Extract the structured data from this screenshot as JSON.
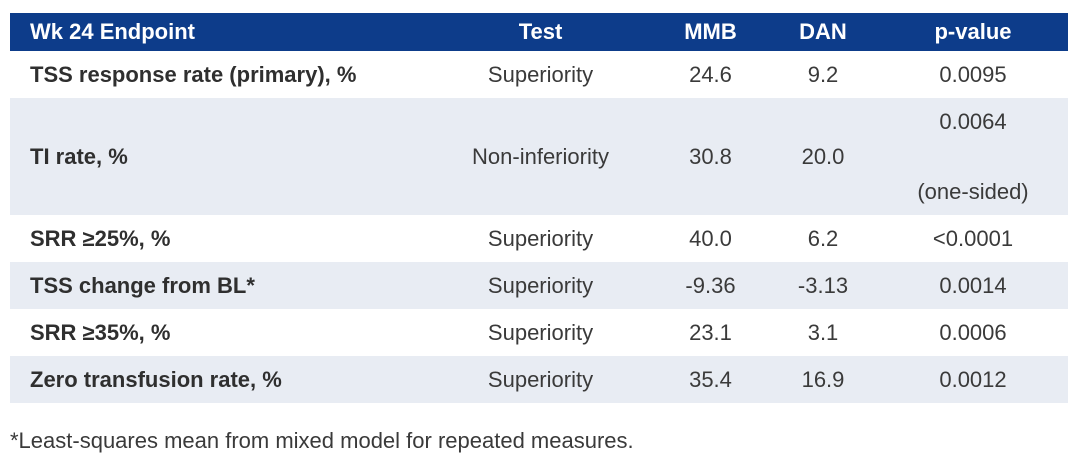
{
  "table": {
    "headers": {
      "endpoint": "Wk 24 Endpoint",
      "test": "Test",
      "mmb": "MMB",
      "dan": "DAN",
      "pvalue": "p-value"
    },
    "rows": [
      {
        "endpoint": "TSS response rate (primary), %",
        "test": "Superiority",
        "mmb": "24.6",
        "dan": "9.2",
        "pvalue": "0.0095"
      },
      {
        "endpoint": "TI rate, %",
        "test": "Non-inferiority",
        "mmb": "30.8",
        "dan": "20.0",
        "pvalue": "0.0064",
        "pvalue_note": "(one-sided)"
      },
      {
        "endpoint": "SRR ≥25%, %",
        "test": "Superiority",
        "mmb": "40.0",
        "dan": "6.2",
        "pvalue": "<0.0001"
      },
      {
        "endpoint": "TSS change from BL*",
        "test": "Superiority",
        "mmb": "-9.36",
        "dan": "-3.13",
        "pvalue": "0.0014"
      },
      {
        "endpoint": "SRR ≥35%, %",
        "test": "Superiority",
        "mmb": "23.1",
        "dan": "3.1",
        "pvalue": "0.0006"
      },
      {
        "endpoint": "Zero transfusion rate, %",
        "test": "Superiority",
        "mmb": "35.4",
        "dan": "16.9",
        "pvalue": "0.0012"
      }
    ]
  },
  "footnote": "*Least-squares mean from mixed model for repeated measures.",
  "colors": {
    "header_bg": "#0d3c8a",
    "header_text": "#ffffff",
    "shaded_row": "#e8ecf3",
    "body_text": "#3a3a3a"
  }
}
